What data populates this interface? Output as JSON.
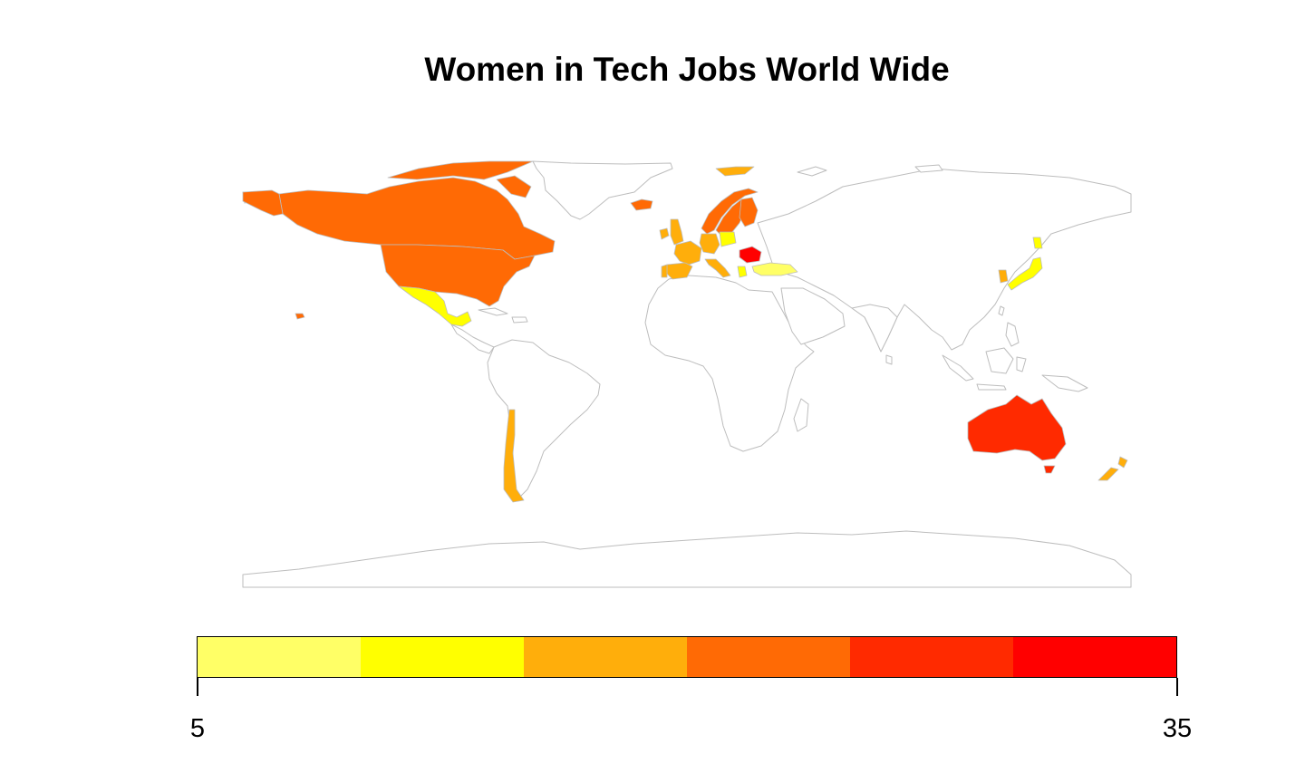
{
  "chart_data": {
    "type": "choropleth",
    "title": "Women in Tech Jobs World Wide",
    "legend": {
      "min": "5",
      "max": "35",
      "bins": [
        {
          "range": [
            5,
            10
          ],
          "color": "#FFFF66"
        },
        {
          "range": [
            10,
            15
          ],
          "color": "#FFFF00"
        },
        {
          "range": [
            15,
            20
          ],
          "color": "#FFAE0B"
        },
        {
          "range": [
            20,
            25
          ],
          "color": "#FF6A05"
        },
        {
          "range": [
            25,
            30
          ],
          "color": "#FF2A00"
        },
        {
          "range": [
            30,
            35
          ],
          "color": "#FF0000"
        }
      ]
    },
    "regions": [
      {
        "name": "Canada",
        "bin": 3
      },
      {
        "name": "United States",
        "bin": 3
      },
      {
        "name": "Mexico",
        "bin": 1
      },
      {
        "name": "Chile",
        "bin": 2
      },
      {
        "name": "Australia",
        "bin": 4
      },
      {
        "name": "New Zealand",
        "bin": 2
      },
      {
        "name": "Japan",
        "bin": 1
      },
      {
        "name": "South Korea",
        "bin": 2
      },
      {
        "name": "Turkey",
        "bin": 0
      },
      {
        "name": "Romania",
        "bin": 5
      },
      {
        "name": "Norway",
        "bin": 3
      },
      {
        "name": "Sweden",
        "bin": 3
      },
      {
        "name": "Finland",
        "bin": 3
      },
      {
        "name": "Iceland",
        "bin": 3
      },
      {
        "name": "Ireland",
        "bin": 2
      },
      {
        "name": "United Kingdom",
        "bin": 2
      },
      {
        "name": "France",
        "bin": 2
      },
      {
        "name": "Spain",
        "bin": 2
      },
      {
        "name": "Portugal",
        "bin": 2
      },
      {
        "name": "Germany",
        "bin": 2
      },
      {
        "name": "Poland",
        "bin": 1
      },
      {
        "name": "Italy",
        "bin": 2
      },
      {
        "name": "Greece",
        "bin": 1
      },
      {
        "name": "Svalbard",
        "bin": 2
      }
    ]
  }
}
